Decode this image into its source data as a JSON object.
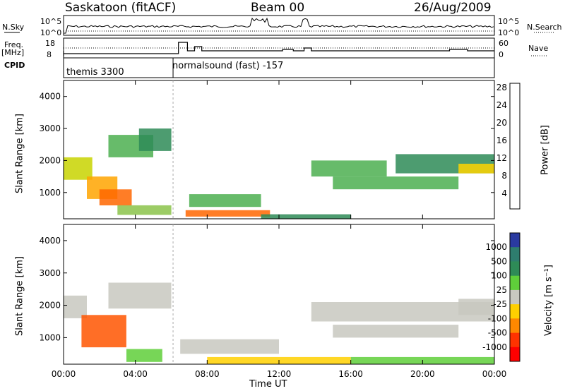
{
  "header": {
    "radar": "Saskatoon (fitACF)",
    "beam": "Beam 00",
    "date": "26/Aug/2009"
  },
  "status": {
    "nsky_label": "N.Sky",
    "nsearch_label": "N.Search",
    "freq_label_1": "Freq.",
    "freq_label_2": "[MHz]",
    "nave_label": "Nave",
    "cpid_label": "CPID",
    "noise_ticks_left": [
      "10^5",
      "10^0"
    ],
    "noise_ticks_right": [
      "10^5",
      "10^0"
    ],
    "freq_ticks": [
      "18",
      "8"
    ],
    "nave_ticks": [
      "60",
      "0"
    ],
    "cpid_segments": [
      {
        "label": "themis 3300",
        "start_hour": 0
      },
      {
        "label": "normalsound (fast) -157",
        "start_hour": 6.1
      }
    ]
  },
  "chart_data": [
    {
      "type": "heatmap",
      "title": "",
      "ylabel": "Slant Range [km]",
      "xlabel": "",
      "xlim_hours": [
        0,
        24
      ],
      "ylim": [
        180,
        4500
      ],
      "yticks": [
        "1000",
        "2000",
        "3000",
        "4000"
      ],
      "colorbar_label": "Power [dB]",
      "colorbar_ticks": [
        "4",
        "8",
        "12",
        "16",
        "20",
        "24",
        "28"
      ],
      "colorbar_colors": [
        "#0000ff",
        "#2244aa",
        "#2e8b57",
        "#4caf50",
        "#8bc34a",
        "#c8d400",
        "#ffd400",
        "#ffa500",
        "#ff6600",
        "#ff0000"
      ],
      "regions": [
        {
          "x0": 0,
          "x1": 1.6,
          "y0": 1400,
          "y1": 2100,
          "power": 17
        },
        {
          "x0": 1.3,
          "x1": 3.0,
          "y0": 800,
          "y1": 1500,
          "power": 22
        },
        {
          "x0": 2.0,
          "x1": 3.8,
          "y0": 600,
          "y1": 1100,
          "power": 26
        },
        {
          "x0": 2.5,
          "x1": 5.0,
          "y0": 2100,
          "y1": 2800,
          "power": 12
        },
        {
          "x0": 4.2,
          "x1": 6.0,
          "y0": 2300,
          "y1": 3000,
          "power": 8
        },
        {
          "x0": 3.0,
          "x1": 6.0,
          "y0": 300,
          "y1": 600,
          "power": 13
        },
        {
          "x0": 6.8,
          "x1": 11.5,
          "y0": 250,
          "y1": 450,
          "power": 25
        },
        {
          "x0": 7.0,
          "x1": 11.0,
          "y0": 550,
          "y1": 950,
          "power": 12
        },
        {
          "x0": 11.0,
          "x1": 16.0,
          "y0": 180,
          "y1": 320,
          "power": 9
        },
        {
          "x0": 13.8,
          "x1": 18.0,
          "y0": 1500,
          "y1": 2000,
          "power": 12
        },
        {
          "x0": 15.0,
          "x1": 22.0,
          "y0": 1100,
          "y1": 1500,
          "power": 10
        },
        {
          "x0": 18.5,
          "x1": 24.0,
          "y0": 1600,
          "y1": 2200,
          "power": 8
        },
        {
          "x0": 22.0,
          "x1": 24.0,
          "y0": 1600,
          "y1": 1900,
          "power": 20
        }
      ]
    },
    {
      "type": "heatmap",
      "title": "",
      "ylabel": "Slant Range [km]",
      "xlabel": "Time UT",
      "xlim_hours": [
        0,
        24
      ],
      "ylim": [
        180,
        4500
      ],
      "yticks": [
        "1000",
        "2000",
        "3000",
        "4000"
      ],
      "xticks": [
        "00:00",
        "04:00",
        "08:00",
        "12:00",
        "16:00",
        "20:00",
        "00:00"
      ],
      "colorbar_label": "Velocity [m s⁻¹]",
      "colorbar_ticks": [
        "1000",
        "500",
        "100",
        "25",
        "-25",
        "-100",
        "-500",
        "-1000"
      ],
      "colorbar_colors": [
        "#2a3aa0",
        "#2e7d6e",
        "#2e8b57",
        "#5fcf3a",
        "#c8c8c0",
        "#ffd000",
        "#ff8800",
        "#ff3300",
        "#ff0000"
      ],
      "regions": [
        {
          "x0": 0,
          "x1": 1.3,
          "y0": 1600,
          "y1": 2300,
          "velocity": 0
        },
        {
          "x0": 1.0,
          "x1": 3.5,
          "y0": 700,
          "y1": 1700,
          "velocity": -500
        },
        {
          "x0": 2.5,
          "x1": 6.0,
          "y0": 1900,
          "y1": 2700,
          "velocity": 0
        },
        {
          "x0": 3.5,
          "x1": 5.5,
          "y0": 250,
          "y1": 650,
          "velocity": 150
        },
        {
          "x0": 6.5,
          "x1": 12.0,
          "y0": 500,
          "y1": 950,
          "velocity": 0
        },
        {
          "x0": 8.0,
          "x1": 16.0,
          "y0": 180,
          "y1": 400,
          "velocity": -60
        },
        {
          "x0": 13.8,
          "x1": 24.0,
          "y0": 1500,
          "y1": 2100,
          "velocity": 0
        },
        {
          "x0": 15.0,
          "x1": 22.0,
          "y0": 1000,
          "y1": 1400,
          "velocity": 0
        },
        {
          "x0": 16.0,
          "x1": 24.0,
          "y0": 180,
          "y1": 400,
          "velocity": 120
        },
        {
          "x0": 22.0,
          "x1": 24.0,
          "y0": 1700,
          "y1": 2200,
          "velocity": 0
        }
      ]
    }
  ]
}
